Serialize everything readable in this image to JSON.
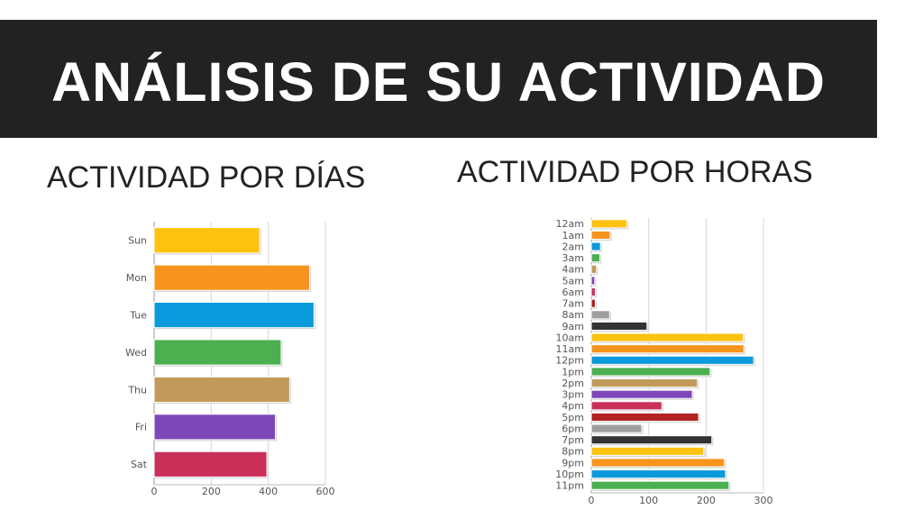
{
  "slide": {
    "title": "ANÁLISIS DE SU ACTIVIDAD",
    "subtitle_days": "ACTIVIDAD POR DÍAS",
    "subtitle_hours": "ACTIVIDAD POR HORAS"
  },
  "chart_data": [
    {
      "type": "bar",
      "orientation": "horizontal",
      "title": "",
      "xlabel": "",
      "ylabel": "",
      "categories": [
        "Sun",
        "Mon",
        "Tue",
        "Wed",
        "Thu",
        "Fri",
        "Sat"
      ],
      "values": [
        370,
        545,
        560,
        445,
        475,
        425,
        395
      ],
      "colors": [
        "#FDC20D",
        "#F7941D",
        "#0A9ADC",
        "#4CAF50",
        "#C19A5B",
        "#7E47B8",
        "#C8305A"
      ],
      "xlim": [
        0,
        600
      ],
      "xticks": [
        0,
        200,
        400,
        600
      ],
      "grid": true,
      "legend": "none"
    },
    {
      "type": "bar",
      "orientation": "horizontal",
      "title": "",
      "xlabel": "",
      "ylabel": "",
      "categories": [
        "12am",
        "1am",
        "2am",
        "3am",
        "4am",
        "5am",
        "6am",
        "7am",
        "8am",
        "9am",
        "10am",
        "11am",
        "12pm",
        "1pm",
        "2pm",
        "3pm",
        "4pm",
        "5pm",
        "6pm",
        "7pm",
        "8pm",
        "9pm",
        "10pm",
        "11pm"
      ],
      "values": [
        62,
        33,
        16,
        15,
        9,
        6,
        7,
        7,
        32,
        97,
        265,
        266,
        283,
        207,
        185,
        176,
        123,
        187,
        88,
        210,
        196,
        232,
        234,
        240
      ],
      "colors": [
        "#FDC20D",
        "#F7941D",
        "#0A9ADC",
        "#4CAF50",
        "#C19A5B",
        "#7E47B8",
        "#C8305A",
        "#B22222",
        "#9E9E9E",
        "#333333",
        "#FDC20D",
        "#F7941D",
        "#0A9ADC",
        "#4CAF50",
        "#C19A5B",
        "#7E47B8",
        "#C8305A",
        "#B22222",
        "#9E9E9E",
        "#333333",
        "#FDC20D",
        "#F7941D",
        "#0A9ADC",
        "#4CAF50"
      ],
      "xlim": [
        0,
        300
      ],
      "xticks": [
        0,
        100,
        200,
        300
      ],
      "grid": true,
      "legend": "none"
    }
  ]
}
